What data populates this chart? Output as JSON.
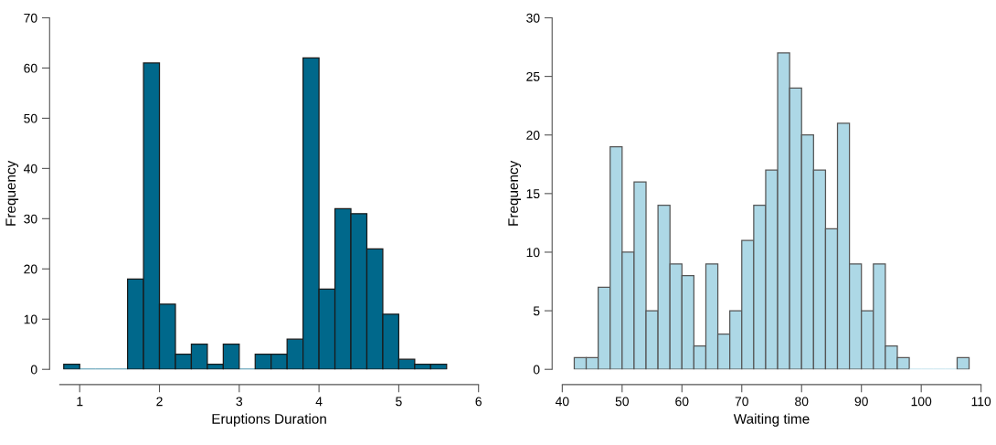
{
  "chart_data": [
    {
      "type": "histogram",
      "xlabel": "Eruptions Duration",
      "ylabel": "Frequency",
      "bins": [
        0.8,
        1.0,
        1.2,
        1.4,
        1.6,
        1.8,
        2.0,
        2.2,
        2.4,
        2.6,
        2.8,
        3.0,
        3.2,
        3.4,
        3.6,
        3.8,
        4.0,
        4.2,
        4.4,
        4.6,
        4.8,
        5.0,
        5.2,
        5.4,
        5.6
      ],
      "values": [
        1,
        0,
        0,
        0,
        18,
        61,
        13,
        3,
        5,
        1,
        5,
        0,
        3,
        3,
        6,
        62,
        16,
        32,
        31,
        24,
        11,
        2,
        1,
        1
      ],
      "color": "#00688b",
      "xlim": [
        0.75,
        6
      ],
      "xticks": [
        1,
        2,
        3,
        4,
        5,
        6
      ],
      "ylim": [
        0,
        70
      ],
      "yticks": [
        0,
        10,
        20,
        30,
        40,
        50,
        60,
        70
      ],
      "grid": false
    },
    {
      "type": "histogram",
      "xlabel": "Waiting time",
      "ylabel": "Frequency",
      "bins": [
        42,
        44,
        46,
        48,
        50,
        52,
        54,
        56,
        58,
        60,
        62,
        64,
        66,
        68,
        70,
        72,
        74,
        76,
        78,
        80,
        82,
        84,
        86,
        88,
        90,
        92,
        94,
        96,
        98,
        100,
        102,
        104,
        106,
        108
      ],
      "values": [
        1,
        1,
        7,
        19,
        10,
        16,
        5,
        14,
        9,
        8,
        2,
        9,
        3,
        5,
        11,
        14,
        17,
        27,
        24,
        20,
        17,
        12,
        21,
        9,
        5,
        9,
        2,
        1,
        0,
        0,
        0,
        0,
        1
      ],
      "color": "#add8e6",
      "xlim": [
        40,
        110
      ],
      "xticks": [
        40,
        50,
        60,
        70,
        80,
        90,
        100,
        110
      ],
      "ylim": [
        0,
        30
      ],
      "yticks": [
        0,
        5,
        10,
        15,
        20,
        25,
        30
      ],
      "grid": false
    }
  ]
}
